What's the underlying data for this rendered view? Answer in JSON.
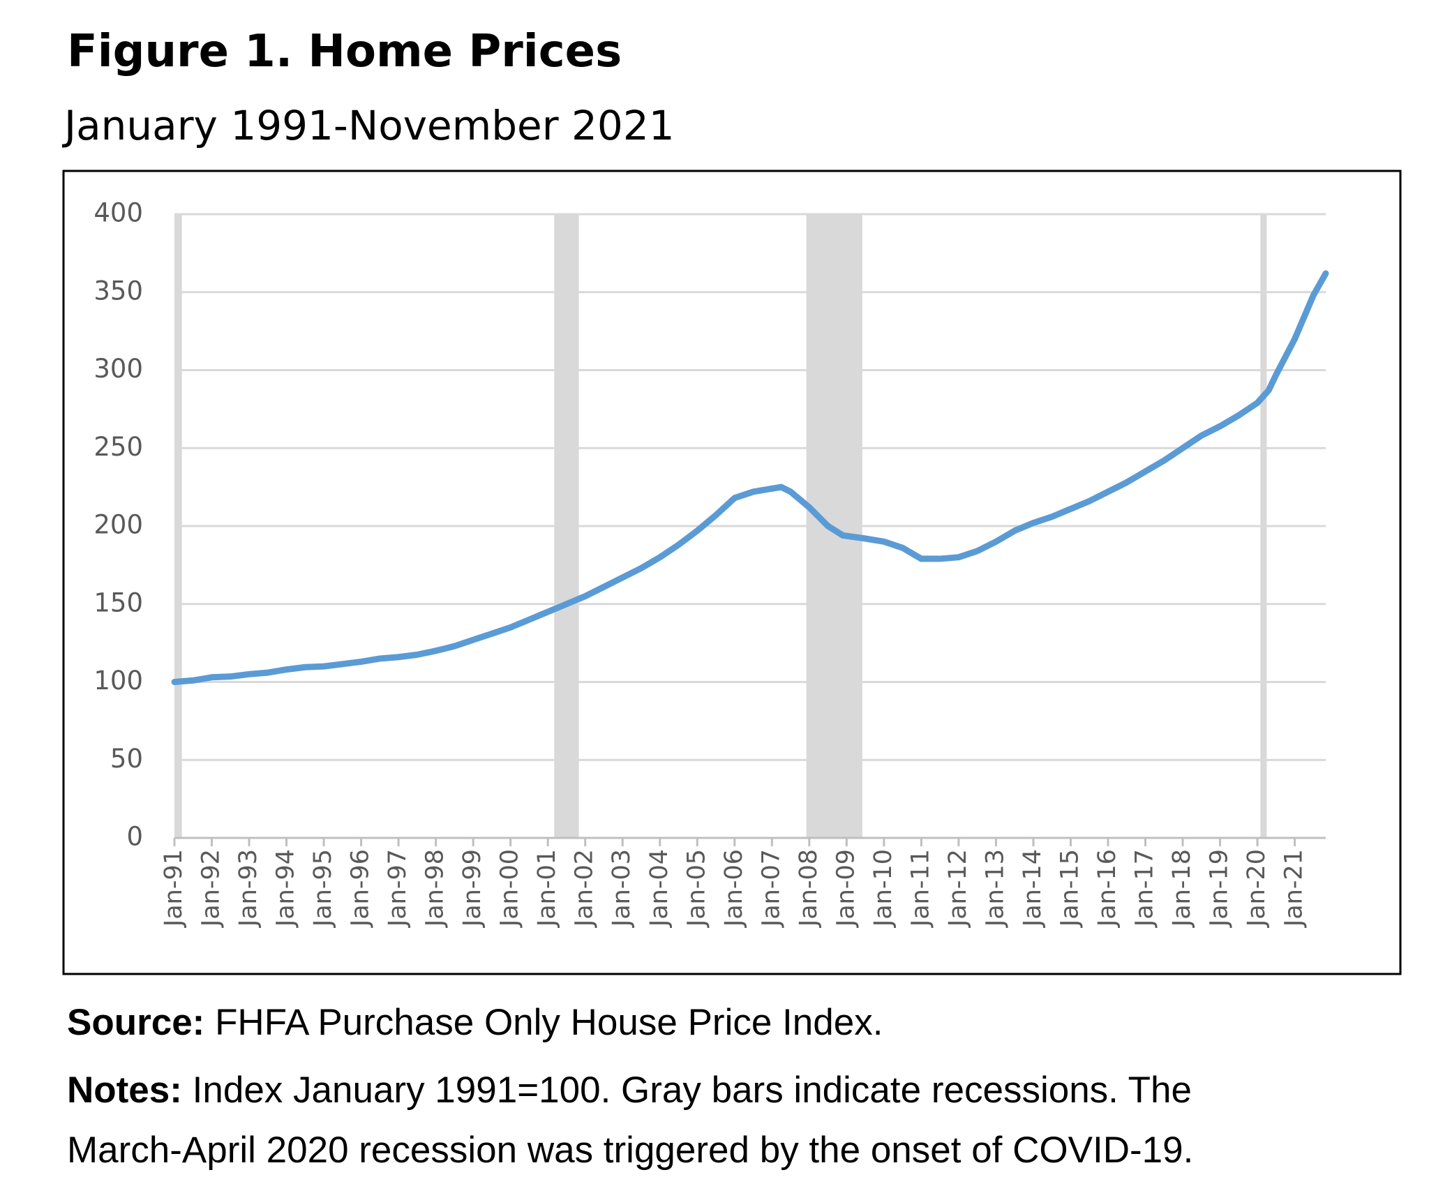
{
  "chart_data": {
    "type": "line",
    "title": "Figure 1. Home Prices",
    "subtitle": "January 1991-November 2021",
    "x": [
      1991,
      1991.5,
      1992,
      1992.5,
      1993,
      1993.5,
      1994,
      1994.5,
      1995,
      1995.5,
      1996,
      1996.5,
      1997,
      1997.5,
      1998,
      1998.5,
      1999,
      1999.5,
      2000,
      2000.5,
      2001,
      2001.5,
      2002,
      2002.5,
      2003,
      2003.5,
      2004,
      2004.5,
      2005,
      2005.5,
      2006,
      2006.5,
      2007,
      2007.25,
      2007.5,
      2008,
      2008.5,
      2008.9,
      2009.5,
      2010,
      2010.5,
      2011,
      2011.5,
      2012,
      2012.5,
      2013,
      2013.5,
      2014,
      2014.5,
      2015,
      2015.5,
      2016,
      2016.5,
      2017,
      2017.5,
      2018,
      2018.5,
      2019,
      2019.5,
      2020,
      2020.3,
      2020.5,
      2021,
      2021.5,
      2021.83
    ],
    "series": [
      {
        "name": "FHFA Purchase Only House Price Index",
        "color": "#5b9bd5",
        "values": [
          100,
          101,
          103,
          103.5,
          105,
          106,
          108,
          109.5,
          110,
          111.5,
          113,
          115,
          116,
          117.5,
          120,
          123,
          127,
          131,
          135,
          140,
          145,
          150,
          155,
          161,
          167,
          173,
          180,
          188,
          197,
          207,
          218,
          222,
          224,
          225,
          222,
          212,
          200,
          194,
          192,
          190,
          186,
          179,
          179,
          180,
          184,
          190,
          197,
          202,
          206,
          211,
          216,
          222,
          228,
          235,
          242,
          250,
          258,
          264,
          271,
          279,
          287,
          297,
          320,
          348,
          362
        ]
      }
    ],
    "recessions": [
      [
        1991,
        1991.2
      ],
      [
        2001.17,
        2001.83
      ],
      [
        2007.92,
        2009.42
      ],
      [
        2020.08,
        2020.25
      ]
    ],
    "recession_color": "#d9d9d9",
    "xlim": [
      1991,
      2021.83
    ],
    "xticks": [
      {
        "value": 1991,
        "label": "Jan-91"
      },
      {
        "value": 1992,
        "label": "Jan-92"
      },
      {
        "value": 1993,
        "label": "Jan-93"
      },
      {
        "value": 1994,
        "label": "Jan-94"
      },
      {
        "value": 1995,
        "label": "Jan-95"
      },
      {
        "value": 1996,
        "label": "Jan-96"
      },
      {
        "value": 1997,
        "label": "Jan-97"
      },
      {
        "value": 1998,
        "label": "Jan-98"
      },
      {
        "value": 1999,
        "label": "Jan-99"
      },
      {
        "value": 2000,
        "label": "Jan-00"
      },
      {
        "value": 2001,
        "label": "Jan-01"
      },
      {
        "value": 2002,
        "label": "Jan-02"
      },
      {
        "value": 2003,
        "label": "Jan-03"
      },
      {
        "value": 2004,
        "label": "Jan-04"
      },
      {
        "value": 2005,
        "label": "Jan-05"
      },
      {
        "value": 2006,
        "label": "Jan-06"
      },
      {
        "value": 2007,
        "label": "Jan-07"
      },
      {
        "value": 2008,
        "label": "Jan-08"
      },
      {
        "value": 2009,
        "label": "Jan-09"
      },
      {
        "value": 2010,
        "label": "Jan-10"
      },
      {
        "value": 2011,
        "label": "Jan-11"
      },
      {
        "value": 2012,
        "label": "Jan-12"
      },
      {
        "value": 2013,
        "label": "Jan-13"
      },
      {
        "value": 2014,
        "label": "Jan-14"
      },
      {
        "value": 2015,
        "label": "Jan-15"
      },
      {
        "value": 2016,
        "label": "Jan-16"
      },
      {
        "value": 2017,
        "label": "Jan-17"
      },
      {
        "value": 2018,
        "label": "Jan-18"
      },
      {
        "value": 2019,
        "label": "Jan-19"
      },
      {
        "value": 2020,
        "label": "Jan-20"
      },
      {
        "value": 2021,
        "label": "Jan-21"
      }
    ],
    "ylim": [
      0,
      400
    ],
    "yticks": [
      0,
      50,
      100,
      150,
      200,
      250,
      300,
      350,
      400
    ],
    "grid": true
  },
  "source": {
    "label": "Source:",
    "text": "FHFA Purchase Only House Price Index."
  },
  "notes": {
    "label": "Notes:",
    "lines": [
      "Index January 1991=100. Gray bars indicate recessions. The",
      "March-April 2020 recession was triggered by the onset of COVID-19."
    ]
  }
}
